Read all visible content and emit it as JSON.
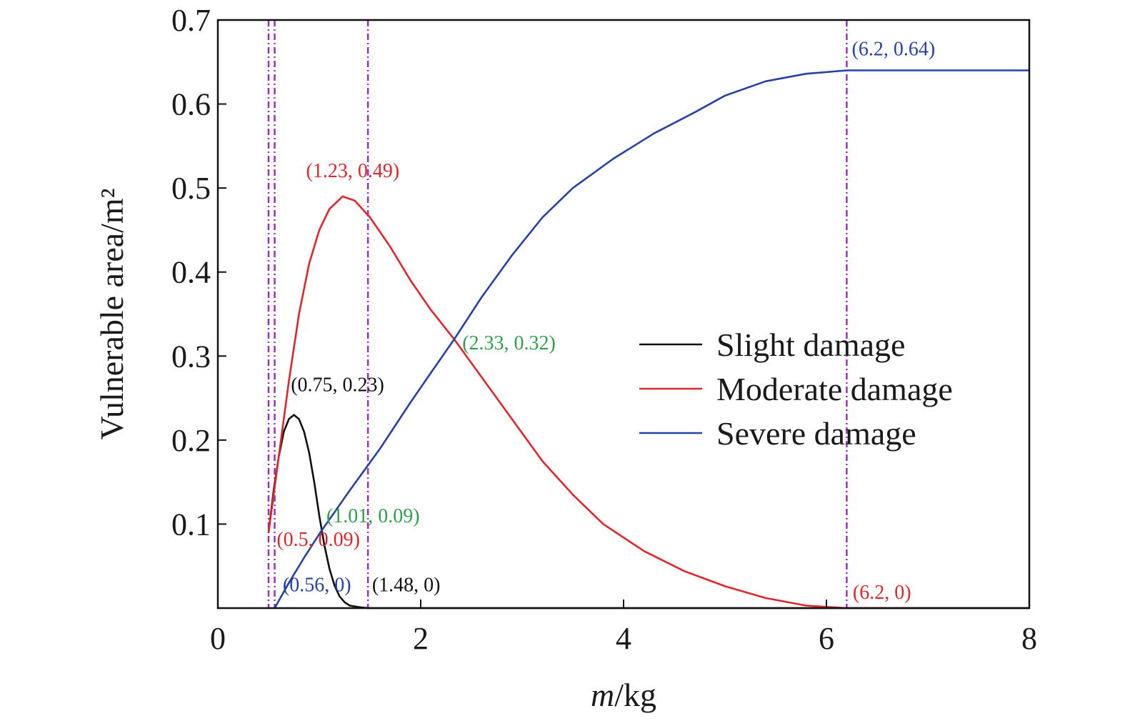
{
  "chart_data": {
    "type": "line",
    "xlabel": "m/kg",
    "xlabel_italic_part": "m",
    "xlabel_unit_part": "/kg",
    "ylabel": "Vulnerable area/m²",
    "xlim": [
      0,
      8
    ],
    "ylim": [
      0,
      0.7
    ],
    "x_ticks": [
      "0",
      "2",
      "4",
      "6",
      "8"
    ],
    "y_ticks": [
      "0.1",
      "0.2",
      "0.3",
      "0.4",
      "0.5",
      "0.6",
      "0.7"
    ],
    "grid": false,
    "legend_position": "right-middle",
    "series": [
      {
        "name": "Slight damage",
        "color": "#111111",
        "points": [
          [
            0.5,
            0.09
          ],
          [
            0.55,
            0.14
          ],
          [
            0.6,
            0.18
          ],
          [
            0.65,
            0.21
          ],
          [
            0.7,
            0.225
          ],
          [
            0.75,
            0.23
          ],
          [
            0.8,
            0.225
          ],
          [
            0.85,
            0.21
          ],
          [
            0.9,
            0.185
          ],
          [
            0.95,
            0.15
          ],
          [
            1.0,
            0.11
          ],
          [
            1.05,
            0.075
          ],
          [
            1.1,
            0.047
          ],
          [
            1.15,
            0.027
          ],
          [
            1.2,
            0.014
          ],
          [
            1.25,
            0.007
          ],
          [
            1.3,
            0.003
          ],
          [
            1.4,
            0.001
          ],
          [
            1.48,
            0.0
          ],
          [
            3.0,
            0.0
          ],
          [
            5.0,
            0.0
          ],
          [
            8.0,
            0.0
          ]
        ]
      },
      {
        "name": "Moderate damage",
        "color": "#e0262b",
        "points": [
          [
            0.5,
            0.09
          ],
          [
            0.6,
            0.18
          ],
          [
            0.7,
            0.27
          ],
          [
            0.8,
            0.35
          ],
          [
            0.9,
            0.41
          ],
          [
            1.0,
            0.45
          ],
          [
            1.1,
            0.475
          ],
          [
            1.23,
            0.49
          ],
          [
            1.35,
            0.485
          ],
          [
            1.5,
            0.465
          ],
          [
            1.7,
            0.43
          ],
          [
            1.9,
            0.39
          ],
          [
            2.1,
            0.355
          ],
          [
            2.33,
            0.32
          ],
          [
            2.6,
            0.275
          ],
          [
            2.9,
            0.225
          ],
          [
            3.2,
            0.175
          ],
          [
            3.5,
            0.135
          ],
          [
            3.8,
            0.1
          ],
          [
            4.2,
            0.068
          ],
          [
            4.6,
            0.044
          ],
          [
            5.0,
            0.026
          ],
          [
            5.4,
            0.012
          ],
          [
            5.8,
            0.003
          ],
          [
            6.2,
            0.0
          ],
          [
            7.0,
            0.0
          ],
          [
            8.0,
            0.0
          ]
        ]
      },
      {
        "name": "Severe damage",
        "color": "#2742a5",
        "points": [
          [
            0.56,
            0.0
          ],
          [
            0.7,
            0.03
          ],
          [
            0.85,
            0.06
          ],
          [
            1.01,
            0.09
          ],
          [
            1.3,
            0.14
          ],
          [
            1.6,
            0.19
          ],
          [
            1.9,
            0.245
          ],
          [
            2.1,
            0.28
          ],
          [
            2.33,
            0.32
          ],
          [
            2.6,
            0.37
          ],
          [
            2.9,
            0.42
          ],
          [
            3.2,
            0.465
          ],
          [
            3.5,
            0.5
          ],
          [
            3.9,
            0.535
          ],
          [
            4.3,
            0.565
          ],
          [
            4.7,
            0.59
          ],
          [
            5.0,
            0.61
          ],
          [
            5.4,
            0.627
          ],
          [
            5.8,
            0.636
          ],
          [
            6.2,
            0.64
          ],
          [
            7.0,
            0.64
          ],
          [
            8.0,
            0.64
          ]
        ]
      }
    ],
    "vertical_lines": [
      {
        "x": 0.5,
        "color": "#9b30c0"
      },
      {
        "x": 0.56,
        "color": "#9b30c0"
      },
      {
        "x": 1.48,
        "color": "#9b30c0"
      },
      {
        "x": 6.2,
        "color": "#9b30c0"
      }
    ],
    "annotations": [
      {
        "text": "(6.2, 0.64)",
        "x": 6.2,
        "y": 0.64,
        "color": "#2742a5",
        "anchor": "start",
        "dx": 0.05,
        "dy": 0.018
      },
      {
        "text": "(1.23, 0.49)",
        "x": 1.23,
        "y": 0.49,
        "color": "#e0262b",
        "anchor": "middle",
        "dx": 0.1,
        "dy": 0.023
      },
      {
        "text": "(2.33, 0.32)",
        "x": 2.33,
        "y": 0.32,
        "color": "#2ea04a",
        "anchor": "start",
        "dx": 0.08,
        "dy": -0.012
      },
      {
        "text": "(0.75, 0.23)",
        "x": 0.75,
        "y": 0.23,
        "color": "#111111",
        "anchor": "start",
        "dx": -0.03,
        "dy": 0.028
      },
      {
        "text": "(1.01, 0.09)",
        "x": 1.01,
        "y": 0.09,
        "color": "#2ea04a",
        "anchor": "start",
        "dx": 0.06,
        "dy": 0.012
      },
      {
        "text": "(0.5, 0.09)",
        "x": 0.5,
        "y": 0.09,
        "color": "#e0262b",
        "anchor": "start",
        "dx": 0.08,
        "dy": -0.016
      },
      {
        "text": "(0.56, 0)",
        "x": 0.56,
        "y": 0.0,
        "color": "#2742a5",
        "anchor": "start",
        "dx": 0.08,
        "dy": 0.02
      },
      {
        "text": "(1.48, 0)",
        "x": 1.48,
        "y": 0.0,
        "color": "#111111",
        "anchor": "start",
        "dx": 0.04,
        "dy": 0.02
      },
      {
        "text": "(6.2, 0)",
        "x": 6.2,
        "y": 0.0,
        "color": "#e0262b",
        "anchor": "start",
        "dx": 0.06,
        "dy": 0.011
      }
    ]
  }
}
